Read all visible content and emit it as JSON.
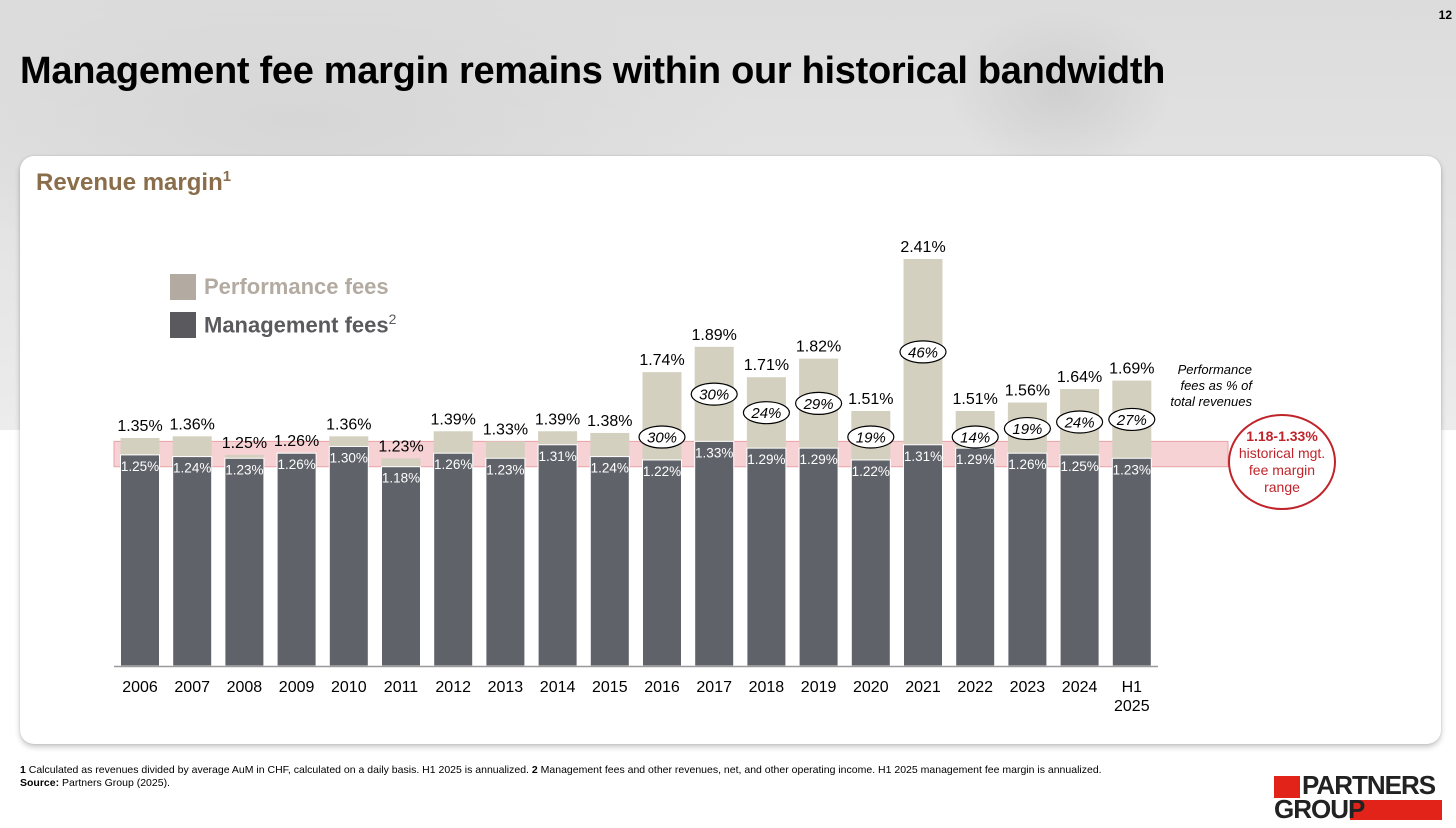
{
  "page_number": "12",
  "title": "Management fee margin remains within our historical bandwidth",
  "card_title": "Revenue margin",
  "card_title_sup": "1",
  "legend": {
    "performance_label": "Performance fees",
    "management_label": "Management fees",
    "management_sup": "2"
  },
  "colors": {
    "performance": "#d4d0c0",
    "management": "#5f6269",
    "legend_performance": "#b3aba1",
    "legend_management": "#5a5a5e",
    "band": "#f6d2d4",
    "band_border": "#e9a3a7",
    "accent_red": "#c0242a",
    "title_brown": "#8a6d4a"
  },
  "chart_data": {
    "type": "bar",
    "stacked": true,
    "categories": [
      "2006",
      "2007",
      "2008",
      "2009",
      "2010",
      "2011",
      "2012",
      "2013",
      "2014",
      "2015",
      "2016",
      "2017",
      "2018",
      "2019",
      "2020",
      "2021",
      "2022",
      "2023",
      "2024",
      "H1 2025"
    ],
    "series": [
      {
        "name": "Management fees",
        "values": [
          1.25,
          1.24,
          1.23,
          1.26,
          1.3,
          1.18,
          1.26,
          1.23,
          1.31,
          1.24,
          1.22,
          1.33,
          1.29,
          1.29,
          1.22,
          1.31,
          1.29,
          1.26,
          1.25,
          1.23
        ]
      },
      {
        "name": "Performance fees",
        "values": [
          0.1,
          0.12,
          0.02,
          0.0,
          0.06,
          0.05,
          0.13,
          0.1,
          0.08,
          0.14,
          0.52,
          0.56,
          0.42,
          0.53,
          0.29,
          1.1,
          0.22,
          0.3,
          0.39,
          0.46
        ]
      }
    ],
    "totals": [
      1.35,
      1.36,
      1.25,
      1.26,
      1.36,
      1.23,
      1.39,
      1.33,
      1.39,
      1.38,
      1.74,
      1.89,
      1.71,
      1.82,
      1.51,
      2.41,
      1.51,
      1.56,
      1.64,
      1.69
    ],
    "total_labels": [
      "1.35%",
      "1.36%",
      "1.25%",
      "1.26%",
      "1.36%",
      "1.23%",
      "1.39%",
      "1.33%",
      "1.39%",
      "1.38%",
      "1.74%",
      "1.89%",
      "1.71%",
      "1.82%",
      "1.51%",
      "2.41%",
      "1.51%",
      "1.56%",
      "1.64%",
      "1.69%"
    ],
    "management_labels": [
      "1.25%",
      "1.24%",
      "1.23%",
      "1.26%",
      "1.30%",
      "1.18%",
      "1.26%",
      "1.23%",
      "1.31%",
      "1.24%",
      "1.22%",
      "1.33%",
      "1.29%",
      "1.29%",
      "1.22%",
      "1.31%",
      "1.29%",
      "1.26%",
      "1.25%",
      "1.23%"
    ],
    "performance_share_labels": [
      null,
      null,
      null,
      null,
      null,
      null,
      null,
      null,
      null,
      null,
      "30%",
      "30%",
      "24%",
      "29%",
      "19%",
      "46%",
      "14%",
      "19%",
      "24%",
      "27%"
    ],
    "band_range": [
      1.18,
      1.33
    ],
    "ylim": [
      0,
      2.45
    ],
    "grid": false,
    "legend_position": "top-left"
  },
  "annotations": {
    "perf_note": "Performance fees as % of total revenues",
    "range_value": "1.18-1.33%",
    "range_line1": "historical mgt.",
    "range_line2": "fee margin",
    "range_line3": "range"
  },
  "footnotes": {
    "n1_num": "1",
    "n1_text": " Calculated as revenues divided by average AuM in CHF, calculated on a daily basis. H1 2025 is annualized. ",
    "n2_num": "2",
    "n2_text": " Management fees and other revenues, net, and other operating income. H1 2025 management fee margin is annualized.",
    "source_label": "Source:",
    "source_text": " Partners Group (2025)."
  },
  "logo": {
    "line1": "PARTNERS",
    "line2": "GROUP"
  }
}
